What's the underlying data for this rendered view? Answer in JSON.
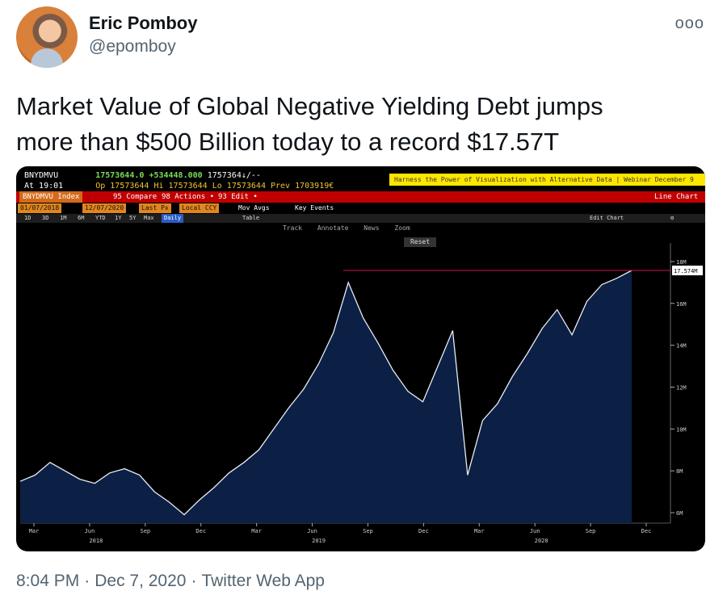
{
  "tweet": {
    "author_name": "Eric Pomboy",
    "author_handle": "@epomboy",
    "more_icon": "ooo",
    "text_line1": "Market Value of Global Negative Yielding Debt jumps",
    "text_line2": "more than $500 Billion today to a record $17.57T",
    "time": "8:04 PM",
    "date": "Dec 7, 2020",
    "app": "Twitter Web App"
  },
  "terminal": {
    "ticker": "BNYDMVU",
    "last": "17573644.0",
    "change": "+534448.000",
    "bid_ask": "1757364↓/--",
    "time_label": "At 19:01",
    "open": "Op 17573644",
    "high": "Hi 17573644",
    "low": "Lo 17573644",
    "prev": "Prev 1703919€",
    "banner": "Harness the Power of Visualization with Alternative Data | Webinar December 9",
    "menu": {
      "index": "BNYDMVU Index",
      "compare": "95 Compare",
      "actions": "98 Actions •",
      "edit": "93 Edit •",
      "chart_type": "Line Chart"
    },
    "settings": {
      "start_date": "01/07/2018",
      "end_date": "12/07/2020",
      "field": "Last Px",
      "currency": "Local CCY",
      "mov_avgs": "Mov Avgs",
      "key_events": "Key Events"
    },
    "periods": [
      "1D",
      "3D",
      "1M",
      "6M",
      "YTD",
      "1Y",
      "5Y",
      "Max"
    ],
    "frequency": "Daily",
    "table_label": "Table",
    "edit_chart": "Edit Chart",
    "tools": [
      "Track",
      "Annotate",
      "News",
      "Zoom"
    ],
    "reset": "Reset",
    "last_value_label": "17.574M"
  },
  "colors": {
    "accent_red": "#c00000",
    "banner_yellow": "#ffe600",
    "area_fill": "#0c1f45",
    "line": "#e8ecf5",
    "record_line": "#d4145a"
  },
  "chart_data": {
    "type": "area",
    "x_ticks": [
      "Mar",
      "Jun",
      "Sep",
      "Dec",
      "Mar",
      "Jun",
      "Sep",
      "Dec",
      "Mar",
      "Jun",
      "Sep",
      "Dec"
    ],
    "years": [
      {
        "label": "2018",
        "at_tick": 1
      },
      {
        "label": "2019",
        "at_tick": 5
      },
      {
        "label": "2020",
        "at_tick": 9
      }
    ],
    "y_ticks": [
      "18M",
      "16M",
      "14M",
      "12M",
      "10M",
      "8M",
      "6M"
    ],
    "ylim": [
      5.5,
      18.5
    ],
    "unit": "M",
    "record_value": 17.574,
    "series": [
      {
        "values": [
          7.5,
          7.8,
          8.4,
          8.0,
          7.6,
          7.4,
          7.9,
          8.1,
          7.8,
          7.0,
          6.5,
          5.9,
          6.6,
          7.2,
          7.9,
          8.4,
          9.0,
          10.0,
          11.0,
          11.9,
          13.1,
          14.6,
          17.0,
          15.3,
          14.1,
          12.8,
          11.8,
          11.3,
          13.0,
          14.7,
          7.8,
          10.4,
          11.2,
          12.5,
          13.6,
          14.8,
          15.7,
          14.5,
          16.1,
          16.9,
          17.2,
          17.574
        ]
      }
    ]
  }
}
